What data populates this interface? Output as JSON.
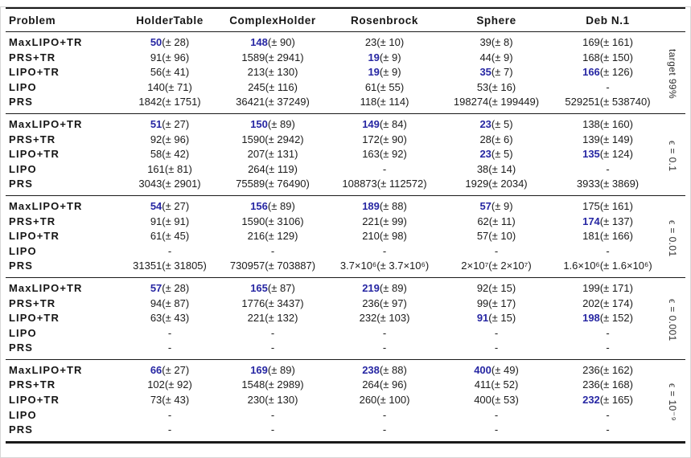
{
  "colors": {
    "accent_blue": "#2727a3",
    "rule_black": "#1a1a1a"
  },
  "header": {
    "problem": "Problem",
    "columns": [
      "HolderTable",
      "ComplexHolder",
      "Rosenbrock",
      "Sphere",
      "Deb N.1"
    ]
  },
  "sections": [
    {
      "label": "target 99%",
      "rows": [
        {
          "method": "MaxLIPO+TR",
          "cells": [
            {
              "v": "50",
              "pm": "(± 28)",
              "best": true
            },
            {
              "v": "148",
              "pm": "(± 90)",
              "best": true
            },
            {
              "v": "23",
              "pm": "(± 10)",
              "best": false
            },
            {
              "v": "39",
              "pm": "(± 8)",
              "best": false
            },
            {
              "v": "169",
              "pm": "(± 161)",
              "best": false
            }
          ]
        },
        {
          "method": "PRS+TR",
          "cells": [
            {
              "v": "91",
              "pm": "(± 96)",
              "best": false
            },
            {
              "v": "1589",
              "pm": "(± 2941)",
              "best": false
            },
            {
              "v": "19",
              "pm": "(± 9)",
              "best": true
            },
            {
              "v": "44",
              "pm": "(± 9)",
              "best": false
            },
            {
              "v": "168",
              "pm": "(± 150)",
              "best": false
            }
          ]
        },
        {
          "method": "LIPO+TR",
          "cells": [
            {
              "v": "56",
              "pm": "(± 41)",
              "best": false
            },
            {
              "v": "213",
              "pm": "(± 130)",
              "best": false
            },
            {
              "v": "19",
              "pm": "(± 9)",
              "best": true
            },
            {
              "v": "35",
              "pm": "(± 7)",
              "best": true
            },
            {
              "v": "166",
              "pm": "(± 126)",
              "best": true
            }
          ]
        },
        {
          "method": "LIPO",
          "cells": [
            {
              "v": "140",
              "pm": "(± 71)",
              "best": false
            },
            {
              "v": "245",
              "pm": "(± 116)",
              "best": false
            },
            {
              "v": "61",
              "pm": "(± 55)",
              "best": false
            },
            {
              "v": "53",
              "pm": "(± 16)",
              "best": false
            },
            {
              "v": "-",
              "pm": "",
              "best": false
            }
          ]
        },
        {
          "method": "PRS",
          "cells": [
            {
              "v": "1842",
              "pm": "(± 1751)",
              "best": false
            },
            {
              "v": "36421",
              "pm": "(± 37249)",
              "best": false
            },
            {
              "v": "118",
              "pm": "(± 114)",
              "best": false
            },
            {
              "v": "198274",
              "pm": "(± 199449)",
              "best": false
            },
            {
              "v": "529251",
              "pm": "(± 538740)",
              "best": false
            }
          ]
        }
      ]
    },
    {
      "label": "ϵ = 0.1",
      "rows": [
        {
          "method": "MaxLIPO+TR",
          "cells": [
            {
              "v": "51",
              "pm": "(± 27)",
              "best": true
            },
            {
              "v": "150",
              "pm": "(± 89)",
              "best": true
            },
            {
              "v": "149",
              "pm": "(± 84)",
              "best": true
            },
            {
              "v": "23",
              "pm": "(± 5)",
              "best": true
            },
            {
              "v": "138",
              "pm": "(± 160)",
              "best": false
            }
          ]
        },
        {
          "method": "PRS+TR",
          "cells": [
            {
              "v": "92",
              "pm": "(± 96)",
              "best": false
            },
            {
              "v": "1590",
              "pm": "(± 2942)",
              "best": false
            },
            {
              "v": "172",
              "pm": "(± 90)",
              "best": false
            },
            {
              "v": "28",
              "pm": "(± 6)",
              "best": false
            },
            {
              "v": "139",
              "pm": "(± 149)",
              "best": false
            }
          ]
        },
        {
          "method": "LIPO+TR",
          "cells": [
            {
              "v": "58",
              "pm": "(± 42)",
              "best": false
            },
            {
              "v": "207",
              "pm": "(± 131)",
              "best": false
            },
            {
              "v": "163",
              "pm": "(± 92)",
              "best": false
            },
            {
              "v": "23",
              "pm": "(± 5)",
              "best": true
            },
            {
              "v": "135",
              "pm": "(± 124)",
              "best": true
            }
          ]
        },
        {
          "method": "LIPO",
          "cells": [
            {
              "v": "161",
              "pm": "(± 81)",
              "best": false
            },
            {
              "v": "264",
              "pm": "(± 119)",
              "best": false
            },
            {
              "v": "-",
              "pm": "",
              "best": false
            },
            {
              "v": "38",
              "pm": "(± 14)",
              "best": false
            },
            {
              "v": "-",
              "pm": "",
              "best": false
            }
          ]
        },
        {
          "method": "PRS",
          "cells": [
            {
              "v": "3043",
              "pm": "(± 2901)",
              "best": false
            },
            {
              "v": "75589",
              "pm": "(± 76490)",
              "best": false
            },
            {
              "v": "108873",
              "pm": "(± 112572)",
              "best": false
            },
            {
              "v": "1929",
              "pm": "(± 2034)",
              "best": false
            },
            {
              "v": "3933",
              "pm": "(± 3869)",
              "best": false
            }
          ]
        }
      ]
    },
    {
      "label": "ϵ = 0.01",
      "rows": [
        {
          "method": "MaxLIPO+TR",
          "cells": [
            {
              "v": "54",
              "pm": "(± 27)",
              "best": true
            },
            {
              "v": "156",
              "pm": "(± 89)",
              "best": true
            },
            {
              "v": "189",
              "pm": "(± 88)",
              "best": true
            },
            {
              "v": "57",
              "pm": "(± 9)",
              "best": true
            },
            {
              "v": "175",
              "pm": "(± 161)",
              "best": false
            }
          ]
        },
        {
          "method": "PRS+TR",
          "cells": [
            {
              "v": "91",
              "pm": "(± 91)",
              "best": false
            },
            {
              "v": "1590",
              "pm": "(± 3106)",
              "best": false
            },
            {
              "v": "221",
              "pm": "(± 99)",
              "best": false
            },
            {
              "v": "62",
              "pm": "(± 11)",
              "best": false
            },
            {
              "v": "174",
              "pm": "(± 137)",
              "best": true
            }
          ]
        },
        {
          "method": "LIPO+TR",
          "cells": [
            {
              "v": "61",
              "pm": "(± 45)",
              "best": false
            },
            {
              "v": "216",
              "pm": "(± 129)",
              "best": false
            },
            {
              "v": "210",
              "pm": "(± 98)",
              "best": false
            },
            {
              "v": "57",
              "pm": "(± 10)",
              "best": false
            },
            {
              "v": "181",
              "pm": "(± 166)",
              "best": false
            }
          ]
        },
        {
          "method": "LIPO",
          "cells": [
            {
              "v": "-",
              "pm": "",
              "best": false
            },
            {
              "v": "-",
              "pm": "",
              "best": false
            },
            {
              "v": "-",
              "pm": "",
              "best": false
            },
            {
              "v": "-",
              "pm": "",
              "best": false
            },
            {
              "v": "-",
              "pm": "",
              "best": false
            }
          ]
        },
        {
          "method": "PRS",
          "cells": [
            {
              "v": "31351",
              "pm": "(± 31805)",
              "best": false
            },
            {
              "v": "730957",
              "pm": "(± 703887)",
              "best": false
            },
            {
              "v": "3.7×10⁶",
              "pm": "(± 3.7×10⁶)",
              "best": false
            },
            {
              "v": "2×10⁷",
              "pm": "(± 2×10⁷)",
              "best": false
            },
            {
              "v": "1.6×10⁶",
              "pm": "(± 1.6×10⁶)",
              "best": false
            }
          ]
        }
      ]
    },
    {
      "label": "ϵ = 0.001",
      "rows": [
        {
          "method": "MaxLIPO+TR",
          "cells": [
            {
              "v": "57",
              "pm": "(± 28)",
              "best": true
            },
            {
              "v": "165",
              "pm": "(± 87)",
              "best": true
            },
            {
              "v": "219",
              "pm": "(± 89)",
              "best": true
            },
            {
              "v": "92",
              "pm": "(± 15)",
              "best": false
            },
            {
              "v": "199",
              "pm": "(± 171)",
              "best": false
            }
          ]
        },
        {
          "method": "PRS+TR",
          "cells": [
            {
              "v": "94",
              "pm": "(± 87)",
              "best": false
            },
            {
              "v": "1776",
              "pm": "(± 3437)",
              "best": false
            },
            {
              "v": "236",
              "pm": "(± 97)",
              "best": false
            },
            {
              "v": "99",
              "pm": "(± 17)",
              "best": false
            },
            {
              "v": "202",
              "pm": "(± 174)",
              "best": false
            }
          ]
        },
        {
          "method": "LIPO+TR",
          "cells": [
            {
              "v": "63",
              "pm": "(± 43)",
              "best": false
            },
            {
              "v": "221",
              "pm": "(± 132)",
              "best": false
            },
            {
              "v": "232",
              "pm": "(± 103)",
              "best": false
            },
            {
              "v": "91",
              "pm": "(± 15)",
              "best": true
            },
            {
              "v": "198",
              "pm": "(± 152)",
              "best": true
            }
          ]
        },
        {
          "method": "LIPO",
          "cells": [
            {
              "v": "-",
              "pm": "",
              "best": false
            },
            {
              "v": "-",
              "pm": "",
              "best": false
            },
            {
              "v": "-",
              "pm": "",
              "best": false
            },
            {
              "v": "-",
              "pm": "",
              "best": false
            },
            {
              "v": "-",
              "pm": "",
              "best": false
            }
          ]
        },
        {
          "method": "PRS",
          "cells": [
            {
              "v": "-",
              "pm": "",
              "best": false
            },
            {
              "v": "-",
              "pm": "",
              "best": false
            },
            {
              "v": "-",
              "pm": "",
              "best": false
            },
            {
              "v": "-",
              "pm": "",
              "best": false
            },
            {
              "v": "-",
              "pm": "",
              "best": false
            }
          ]
        }
      ]
    },
    {
      "label": "ϵ = 10⁻⁹",
      "rows": [
        {
          "method": "MaxLIPO+TR",
          "cells": [
            {
              "v": "66",
              "pm": "(± 27)",
              "best": true
            },
            {
              "v": "169",
              "pm": "(± 89)",
              "best": true
            },
            {
              "v": "238",
              "pm": "(± 88)",
              "best": true
            },
            {
              "v": "400",
              "pm": "(± 49)",
              "best": true
            },
            {
              "v": "236",
              "pm": "(± 162)",
              "best": false
            }
          ]
        },
        {
          "method": "PRS+TR",
          "cells": [
            {
              "v": "102",
              "pm": "(± 92)",
              "best": false
            },
            {
              "v": "1548",
              "pm": "(± 2989)",
              "best": false
            },
            {
              "v": "264",
              "pm": "(± 96)",
              "best": false
            },
            {
              "v": "411",
              "pm": "(± 52)",
              "best": false
            },
            {
              "v": "236",
              "pm": "(± 168)",
              "best": false
            }
          ]
        },
        {
          "method": "LIPO+TR",
          "cells": [
            {
              "v": "73",
              "pm": "(± 43)",
              "best": false
            },
            {
              "v": "230",
              "pm": "(± 130)",
              "best": false
            },
            {
              "v": "260",
              "pm": "(± 100)",
              "best": false
            },
            {
              "v": "400",
              "pm": "(± 53)",
              "best": false
            },
            {
              "v": "232",
              "pm": "(± 165)",
              "best": true
            }
          ]
        },
        {
          "method": "LIPO",
          "cells": [
            {
              "v": "-",
              "pm": "",
              "best": false
            },
            {
              "v": "-",
              "pm": "",
              "best": false
            },
            {
              "v": "-",
              "pm": "",
              "best": false
            },
            {
              "v": "-",
              "pm": "",
              "best": false
            },
            {
              "v": "-",
              "pm": "",
              "best": false
            }
          ]
        },
        {
          "method": "PRS",
          "cells": [
            {
              "v": "-",
              "pm": "",
              "best": false
            },
            {
              "v": "-",
              "pm": "",
              "best": false
            },
            {
              "v": "-",
              "pm": "",
              "best": false
            },
            {
              "v": "-",
              "pm": "",
              "best": false
            },
            {
              "v": "-",
              "pm": "",
              "best": false
            }
          ]
        }
      ]
    }
  ]
}
